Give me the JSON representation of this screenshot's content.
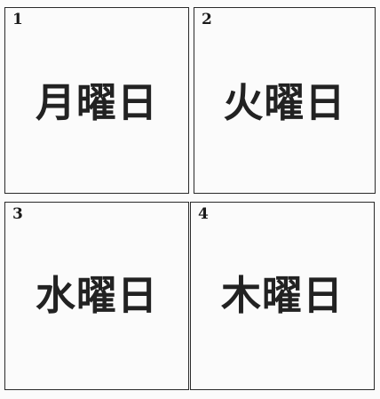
{
  "cards": [
    {
      "number": "1",
      "text": "月曜日"
    },
    {
      "number": "2",
      "text": "火曜日"
    },
    {
      "number": "3",
      "text": "水曜日"
    },
    {
      "number": "4",
      "text": "木曜日"
    }
  ]
}
